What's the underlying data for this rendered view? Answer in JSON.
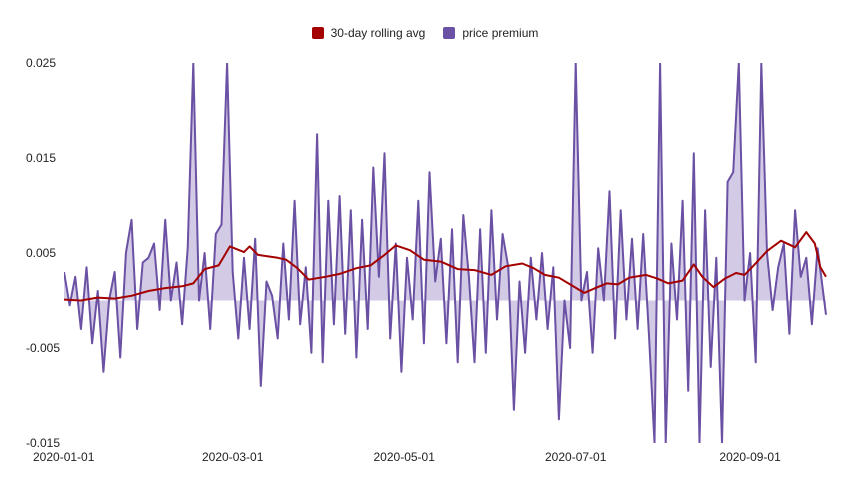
{
  "chart_data": {
    "type": "area",
    "title": "",
    "xlabel": "",
    "ylabel": "",
    "ylim": [
      -0.015,
      0.025
    ],
    "xlim": [
      "2020-01-01",
      "2020-09-28"
    ],
    "grid": false,
    "legend_placement": "top-center",
    "y_ticks": [
      {
        "value": -0.015,
        "label": "-0.015"
      },
      {
        "value": -0.005,
        "label": "-0.005"
      },
      {
        "value": 0.005,
        "label": "0.005"
      },
      {
        "value": 0.015,
        "label": "0.015"
      },
      {
        "value": 0.025,
        "label": "0.025"
      }
    ],
    "x_ticks": [
      {
        "value": "2020-01-01",
        "label": "2020-01-01"
      },
      {
        "value": "2020-03-01",
        "label": "2020-03-01"
      },
      {
        "value": "2020-05-01",
        "label": "2020-05-01"
      },
      {
        "value": "2020-07-01",
        "label": "2020-07-01"
      },
      {
        "value": "2020-09-01",
        "label": "2020-09-01"
      }
    ],
    "legend": [
      {
        "name": "30-day rolling avg",
        "color": "#a40000"
      },
      {
        "name": "price premium",
        "color": "#6a51a3"
      }
    ],
    "series": [
      {
        "name": "price premium",
        "kind": "area",
        "color": "#6a51a3",
        "fill": "#d3cae6",
        "points": [
          [
            "2020-01-01",
            0.003
          ],
          [
            "2020-01-03",
            -0.0005
          ],
          [
            "2020-01-05",
            0.0025
          ],
          [
            "2020-01-07",
            -0.003
          ],
          [
            "2020-01-09",
            0.0035
          ],
          [
            "2020-01-11",
            -0.0045
          ],
          [
            "2020-01-13",
            0.001
          ],
          [
            "2020-01-15",
            -0.0075
          ],
          [
            "2020-01-17",
            0.0
          ],
          [
            "2020-01-19",
            0.003
          ],
          [
            "2020-01-21",
            -0.006
          ],
          [
            "2020-01-23",
            0.005
          ],
          [
            "2020-01-25",
            0.0085
          ],
          [
            "2020-01-27",
            -0.003
          ],
          [
            "2020-01-29",
            0.004
          ],
          [
            "2020-01-31",
            0.0045
          ],
          [
            "2020-02-02",
            0.006
          ],
          [
            "2020-02-04",
            -0.001
          ],
          [
            "2020-02-06",
            0.0085
          ],
          [
            "2020-02-08",
            0.0
          ],
          [
            "2020-02-10",
            0.004
          ],
          [
            "2020-02-12",
            -0.0025
          ],
          [
            "2020-02-14",
            0.0055
          ],
          [
            "2020-02-16",
            0.025
          ],
          [
            "2020-02-18",
            0.0
          ],
          [
            "2020-02-20",
            0.005
          ],
          [
            "2020-02-22",
            -0.003
          ],
          [
            "2020-02-24",
            0.007
          ],
          [
            "2020-02-26",
            0.008
          ],
          [
            "2020-02-28",
            0.025
          ],
          [
            "2020-03-01",
            0.003
          ],
          [
            "2020-03-03",
            -0.004
          ],
          [
            "2020-03-05",
            0.0045
          ],
          [
            "2020-03-07",
            -0.003
          ],
          [
            "2020-03-09",
            0.0065
          ],
          [
            "2020-03-11",
            -0.009
          ],
          [
            "2020-03-13",
            0.002
          ],
          [
            "2020-03-15",
            0.0005
          ],
          [
            "2020-03-17",
            -0.004
          ],
          [
            "2020-03-19",
            0.006
          ],
          [
            "2020-03-21",
            -0.002
          ],
          [
            "2020-03-23",
            0.0105
          ],
          [
            "2020-03-25",
            -0.0025
          ],
          [
            "2020-03-27",
            0.0035
          ],
          [
            "2020-03-29",
            -0.0055
          ],
          [
            "2020-03-31",
            0.0175
          ],
          [
            "2020-04-02",
            -0.0065
          ],
          [
            "2020-04-04",
            0.0105
          ],
          [
            "2020-04-06",
            -0.0025
          ],
          [
            "2020-04-08",
            0.011
          ],
          [
            "2020-04-10",
            -0.0035
          ],
          [
            "2020-04-12",
            0.0095
          ],
          [
            "2020-04-14",
            -0.006
          ],
          [
            "2020-04-16",
            0.0085
          ],
          [
            "2020-04-18",
            -0.003
          ],
          [
            "2020-04-20",
            0.014
          ],
          [
            "2020-04-22",
            0.0025
          ],
          [
            "2020-04-24",
            0.0155
          ],
          [
            "2020-04-26",
            -0.004
          ],
          [
            "2020-04-28",
            0.006
          ],
          [
            "2020-04-30",
            -0.0075
          ],
          [
            "2020-05-02",
            0.0045
          ],
          [
            "2020-05-04",
            -0.002
          ],
          [
            "2020-05-06",
            0.0105
          ],
          [
            "2020-05-08",
            -0.0045
          ],
          [
            "2020-05-10",
            0.0135
          ],
          [
            "2020-05-12",
            0.002
          ],
          [
            "2020-05-14",
            0.0065
          ],
          [
            "2020-05-16",
            -0.0045
          ],
          [
            "2020-05-18",
            0.0075
          ],
          [
            "2020-05-20",
            -0.0065
          ],
          [
            "2020-05-22",
            0.009
          ],
          [
            "2020-05-24",
            0.0025
          ],
          [
            "2020-05-26",
            -0.0065
          ],
          [
            "2020-05-28",
            0.0075
          ],
          [
            "2020-05-30",
            -0.0055
          ],
          [
            "2020-06-01",
            0.0095
          ],
          [
            "2020-06-03",
            -0.002
          ],
          [
            "2020-06-05",
            0.007
          ],
          [
            "2020-06-07",
            0.0035
          ],
          [
            "2020-06-09",
            -0.0115
          ],
          [
            "2020-06-11",
            0.002
          ],
          [
            "2020-06-13",
            -0.0055
          ],
          [
            "2020-06-15",
            0.0045
          ],
          [
            "2020-06-17",
            -0.002
          ],
          [
            "2020-06-19",
            0.005
          ],
          [
            "2020-06-21",
            -0.003
          ],
          [
            "2020-06-23",
            0.0035
          ],
          [
            "2020-06-25",
            -0.0125
          ],
          [
            "2020-06-27",
            0.0
          ],
          [
            "2020-06-29",
            -0.005
          ],
          [
            "2020-07-01",
            0.025
          ],
          [
            "2020-07-03",
            0.0
          ],
          [
            "2020-07-05",
            0.003
          ],
          [
            "2020-07-07",
            -0.0055
          ],
          [
            "2020-07-09",
            0.0055
          ],
          [
            "2020-07-11",
            0.0
          ],
          [
            "2020-07-13",
            0.0115
          ],
          [
            "2020-07-15",
            -0.004
          ],
          [
            "2020-07-17",
            0.0095
          ],
          [
            "2020-07-19",
            -0.002
          ],
          [
            "2020-07-21",
            0.0065
          ],
          [
            "2020-07-23",
            -0.003
          ],
          [
            "2020-07-25",
            0.007
          ],
          [
            "2020-07-27",
            -0.0035
          ],
          [
            "2020-07-29",
            -0.015
          ],
          [
            "2020-07-31",
            0.025
          ],
          [
            "2020-08-02",
            -0.015
          ],
          [
            "2020-08-04",
            0.006
          ],
          [
            "2020-08-06",
            -0.002
          ],
          [
            "2020-08-08",
            0.0105
          ],
          [
            "2020-08-10",
            -0.0095
          ],
          [
            "2020-08-12",
            0.0155
          ],
          [
            "2020-08-14",
            -0.015
          ],
          [
            "2020-08-16",
            0.0095
          ],
          [
            "2020-08-18",
            -0.007
          ],
          [
            "2020-08-20",
            0.0045
          ],
          [
            "2020-08-22",
            -0.015
          ],
          [
            "2020-08-24",
            0.0125
          ],
          [
            "2020-08-26",
            0.0135
          ],
          [
            "2020-08-28",
            0.025
          ],
          [
            "2020-08-30",
            0.0
          ],
          [
            "2020-09-01",
            0.005
          ],
          [
            "2020-09-03",
            -0.0065
          ],
          [
            "2020-09-05",
            0.025
          ],
          [
            "2020-09-07",
            0.005
          ],
          [
            "2020-09-09",
            -0.001
          ],
          [
            "2020-09-11",
            0.0035
          ],
          [
            "2020-09-13",
            0.006
          ],
          [
            "2020-09-15",
            -0.0035
          ],
          [
            "2020-09-17",
            0.0095
          ],
          [
            "2020-09-19",
            0.0025
          ],
          [
            "2020-09-21",
            0.0045
          ],
          [
            "2020-09-23",
            -0.0025
          ],
          [
            "2020-09-25",
            0.0055
          ],
          [
            "2020-09-28",
            -0.0015
          ]
        ]
      },
      {
        "name": "30-day rolling avg",
        "kind": "line",
        "color": "#a40000",
        "points": [
          [
            "2020-01-01",
            0.0001
          ],
          [
            "2020-01-07",
            0.0
          ],
          [
            "2020-01-13",
            0.0003
          ],
          [
            "2020-01-19",
            0.0002
          ],
          [
            "2020-01-25",
            0.0005
          ],
          [
            "2020-01-31",
            0.001
          ],
          [
            "2020-02-06",
            0.0013
          ],
          [
            "2020-02-12",
            0.0015
          ],
          [
            "2020-02-16",
            0.0018
          ],
          [
            "2020-02-20",
            0.0033
          ],
          [
            "2020-02-25",
            0.0037
          ],
          [
            "2020-02-29",
            0.0057
          ],
          [
            "2020-03-05",
            0.0051
          ],
          [
            "2020-03-07",
            0.0057
          ],
          [
            "2020-03-10",
            0.0048
          ],
          [
            "2020-03-17",
            0.0045
          ],
          [
            "2020-03-20",
            0.0043
          ],
          [
            "2020-03-24",
            0.0034
          ],
          [
            "2020-03-28",
            0.0022
          ],
          [
            "2020-04-03",
            0.0025
          ],
          [
            "2020-04-08",
            0.0028
          ],
          [
            "2020-04-14",
            0.0034
          ],
          [
            "2020-04-19",
            0.0037
          ],
          [
            "2020-04-24",
            0.0048
          ],
          [
            "2020-04-28",
            0.0058
          ],
          [
            "2020-05-03",
            0.0053
          ],
          [
            "2020-05-08",
            0.0043
          ],
          [
            "2020-05-14",
            0.0041
          ],
          [
            "2020-05-20",
            0.0033
          ],
          [
            "2020-05-26",
            0.0032
          ],
          [
            "2020-06-01",
            0.0027
          ],
          [
            "2020-06-06",
            0.0036
          ],
          [
            "2020-06-12",
            0.0039
          ],
          [
            "2020-06-16",
            0.0034
          ],
          [
            "2020-06-20",
            0.0027
          ],
          [
            "2020-06-25",
            0.0024
          ],
          [
            "2020-06-29",
            0.0017
          ],
          [
            "2020-07-04",
            0.0008
          ],
          [
            "2020-07-08",
            0.0013
          ],
          [
            "2020-07-12",
            0.0018
          ],
          [
            "2020-07-16",
            0.0017
          ],
          [
            "2020-07-20",
            0.0024
          ],
          [
            "2020-07-26",
            0.0027
          ],
          [
            "2020-07-30",
            0.0023
          ],
          [
            "2020-08-03",
            0.0018
          ],
          [
            "2020-08-08",
            0.0021
          ],
          [
            "2020-08-12",
            0.0038
          ],
          [
            "2020-08-15",
            0.0025
          ],
          [
            "2020-08-19",
            0.0014
          ],
          [
            "2020-08-23",
            0.0023
          ],
          [
            "2020-08-27",
            0.0029
          ],
          [
            "2020-08-30",
            0.0027
          ],
          [
            "2020-09-02",
            0.0036
          ],
          [
            "2020-09-07",
            0.0052
          ],
          [
            "2020-09-12",
            0.0063
          ],
          [
            "2020-09-17",
            0.0056
          ],
          [
            "2020-09-21",
            0.0072
          ],
          [
            "2020-09-24",
            0.006
          ],
          [
            "2020-09-26",
            0.0035
          ],
          [
            "2020-09-28",
            0.0025
          ]
        ]
      }
    ]
  }
}
